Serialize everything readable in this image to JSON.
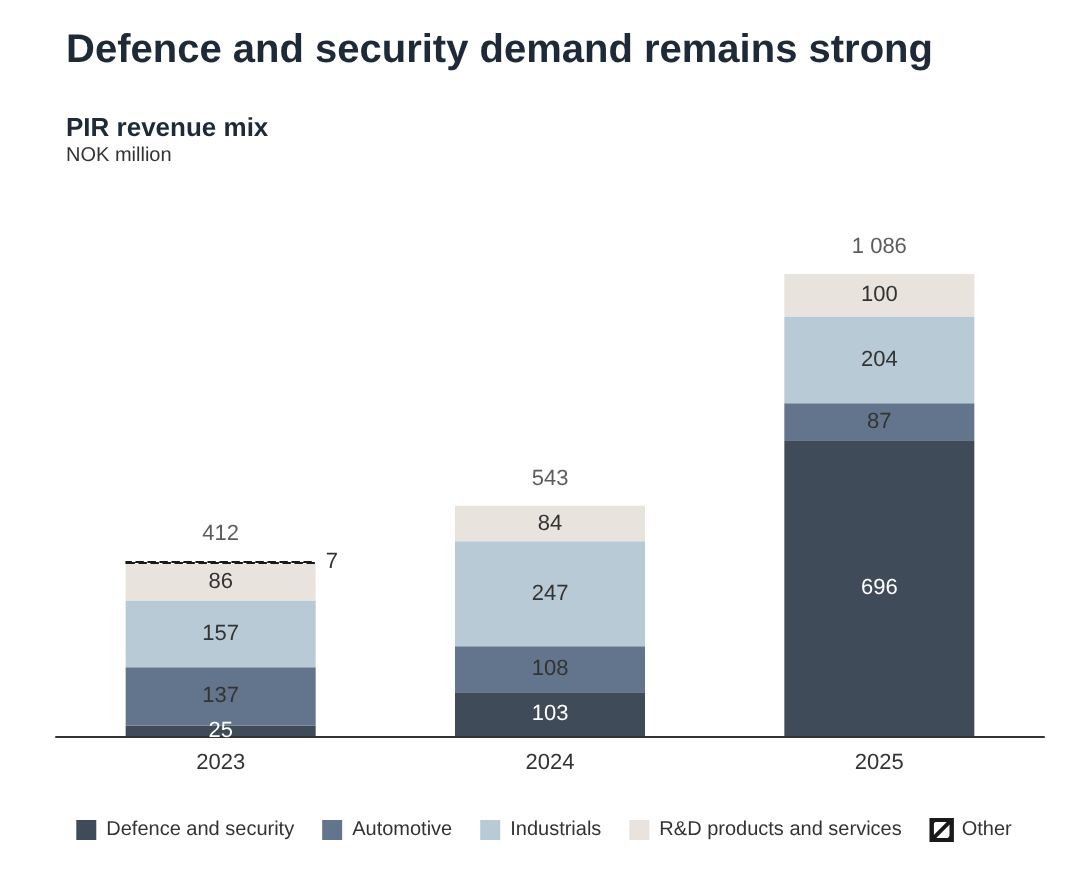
{
  "chart_data": {
    "type": "bar",
    "title": "Defence and security demand remains strong",
    "subtitle": "PIR revenue mix",
    "annotations": [
      "NOK million"
    ],
    "categories": [
      "2023",
      "2024",
      "2025"
    ],
    "stacked": true,
    "data_labels": true,
    "legend": "bottom",
    "series": [
      {
        "name": "Defence and security",
        "color": "#404b5a",
        "values": [
          25,
          103,
          696
        ]
      },
      {
        "name": "Automotive",
        "color": "#63758c",
        "values": [
          137,
          108,
          87
        ]
      },
      {
        "name": "Industrials",
        "color": "#b8cad5",
        "values": [
          157,
          247,
          204
        ]
      },
      {
        "name": "R&D products and services",
        "color": "#e8e3dd",
        "values": [
          86,
          84,
          100
        ]
      },
      {
        "name": "Other",
        "color": "#1a1a1a",
        "values": [
          7,
          null,
          null
        ]
      }
    ],
    "totals": [
      "412",
      "543",
      "1 086"
    ]
  }
}
